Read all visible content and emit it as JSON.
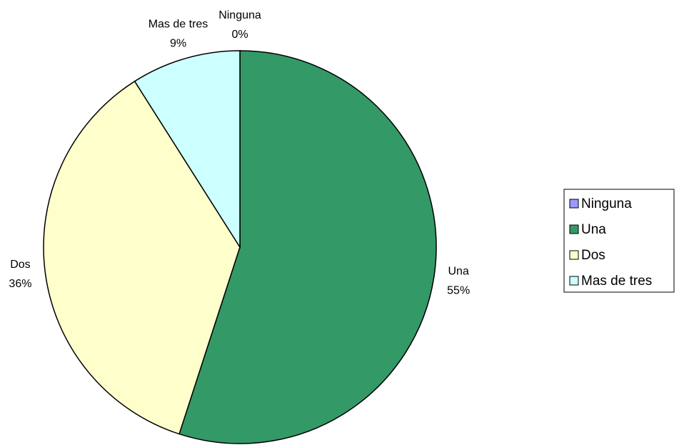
{
  "chart_data": {
    "type": "pie",
    "categories": [
      "Ninguna",
      "Una",
      "Dos",
      "Mas de tres"
    ],
    "values": [
      0,
      55,
      36,
      9
    ],
    "value_labels": [
      "0%",
      "55%",
      "36%",
      "9%"
    ],
    "colors": [
      "#9999ff",
      "#339966",
      "#ffffcc",
      "#ccffff"
    ],
    "legend": "right"
  }
}
